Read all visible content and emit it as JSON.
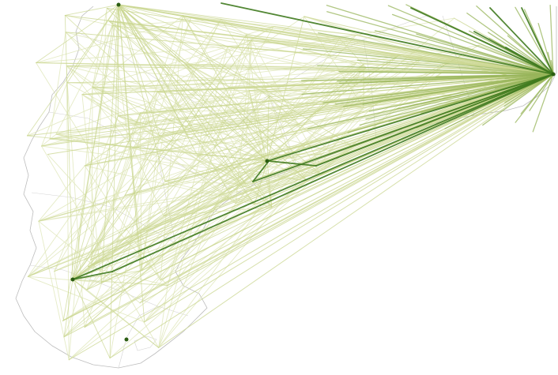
{
  "map": {
    "type": "flow-map",
    "legend_visible": false,
    "labels_visible": false,
    "colors": {
      "background": "#ffffff",
      "boundary": "#bdbdbd",
      "flow_faint": "#dfe6b8",
      "flow_light": "#c9d68f",
      "flow_mid": "#97b45a",
      "flow_dark": "#3f7a1e",
      "flow_darkest": "#2b5d12"
    },
    "hubs": [
      {
        "id": "east-hub"
      },
      {
        "id": "north-hub"
      },
      {
        "id": "central-hub"
      },
      {
        "id": "southwest-hub"
      },
      {
        "id": "south-hub"
      }
    ]
  }
}
